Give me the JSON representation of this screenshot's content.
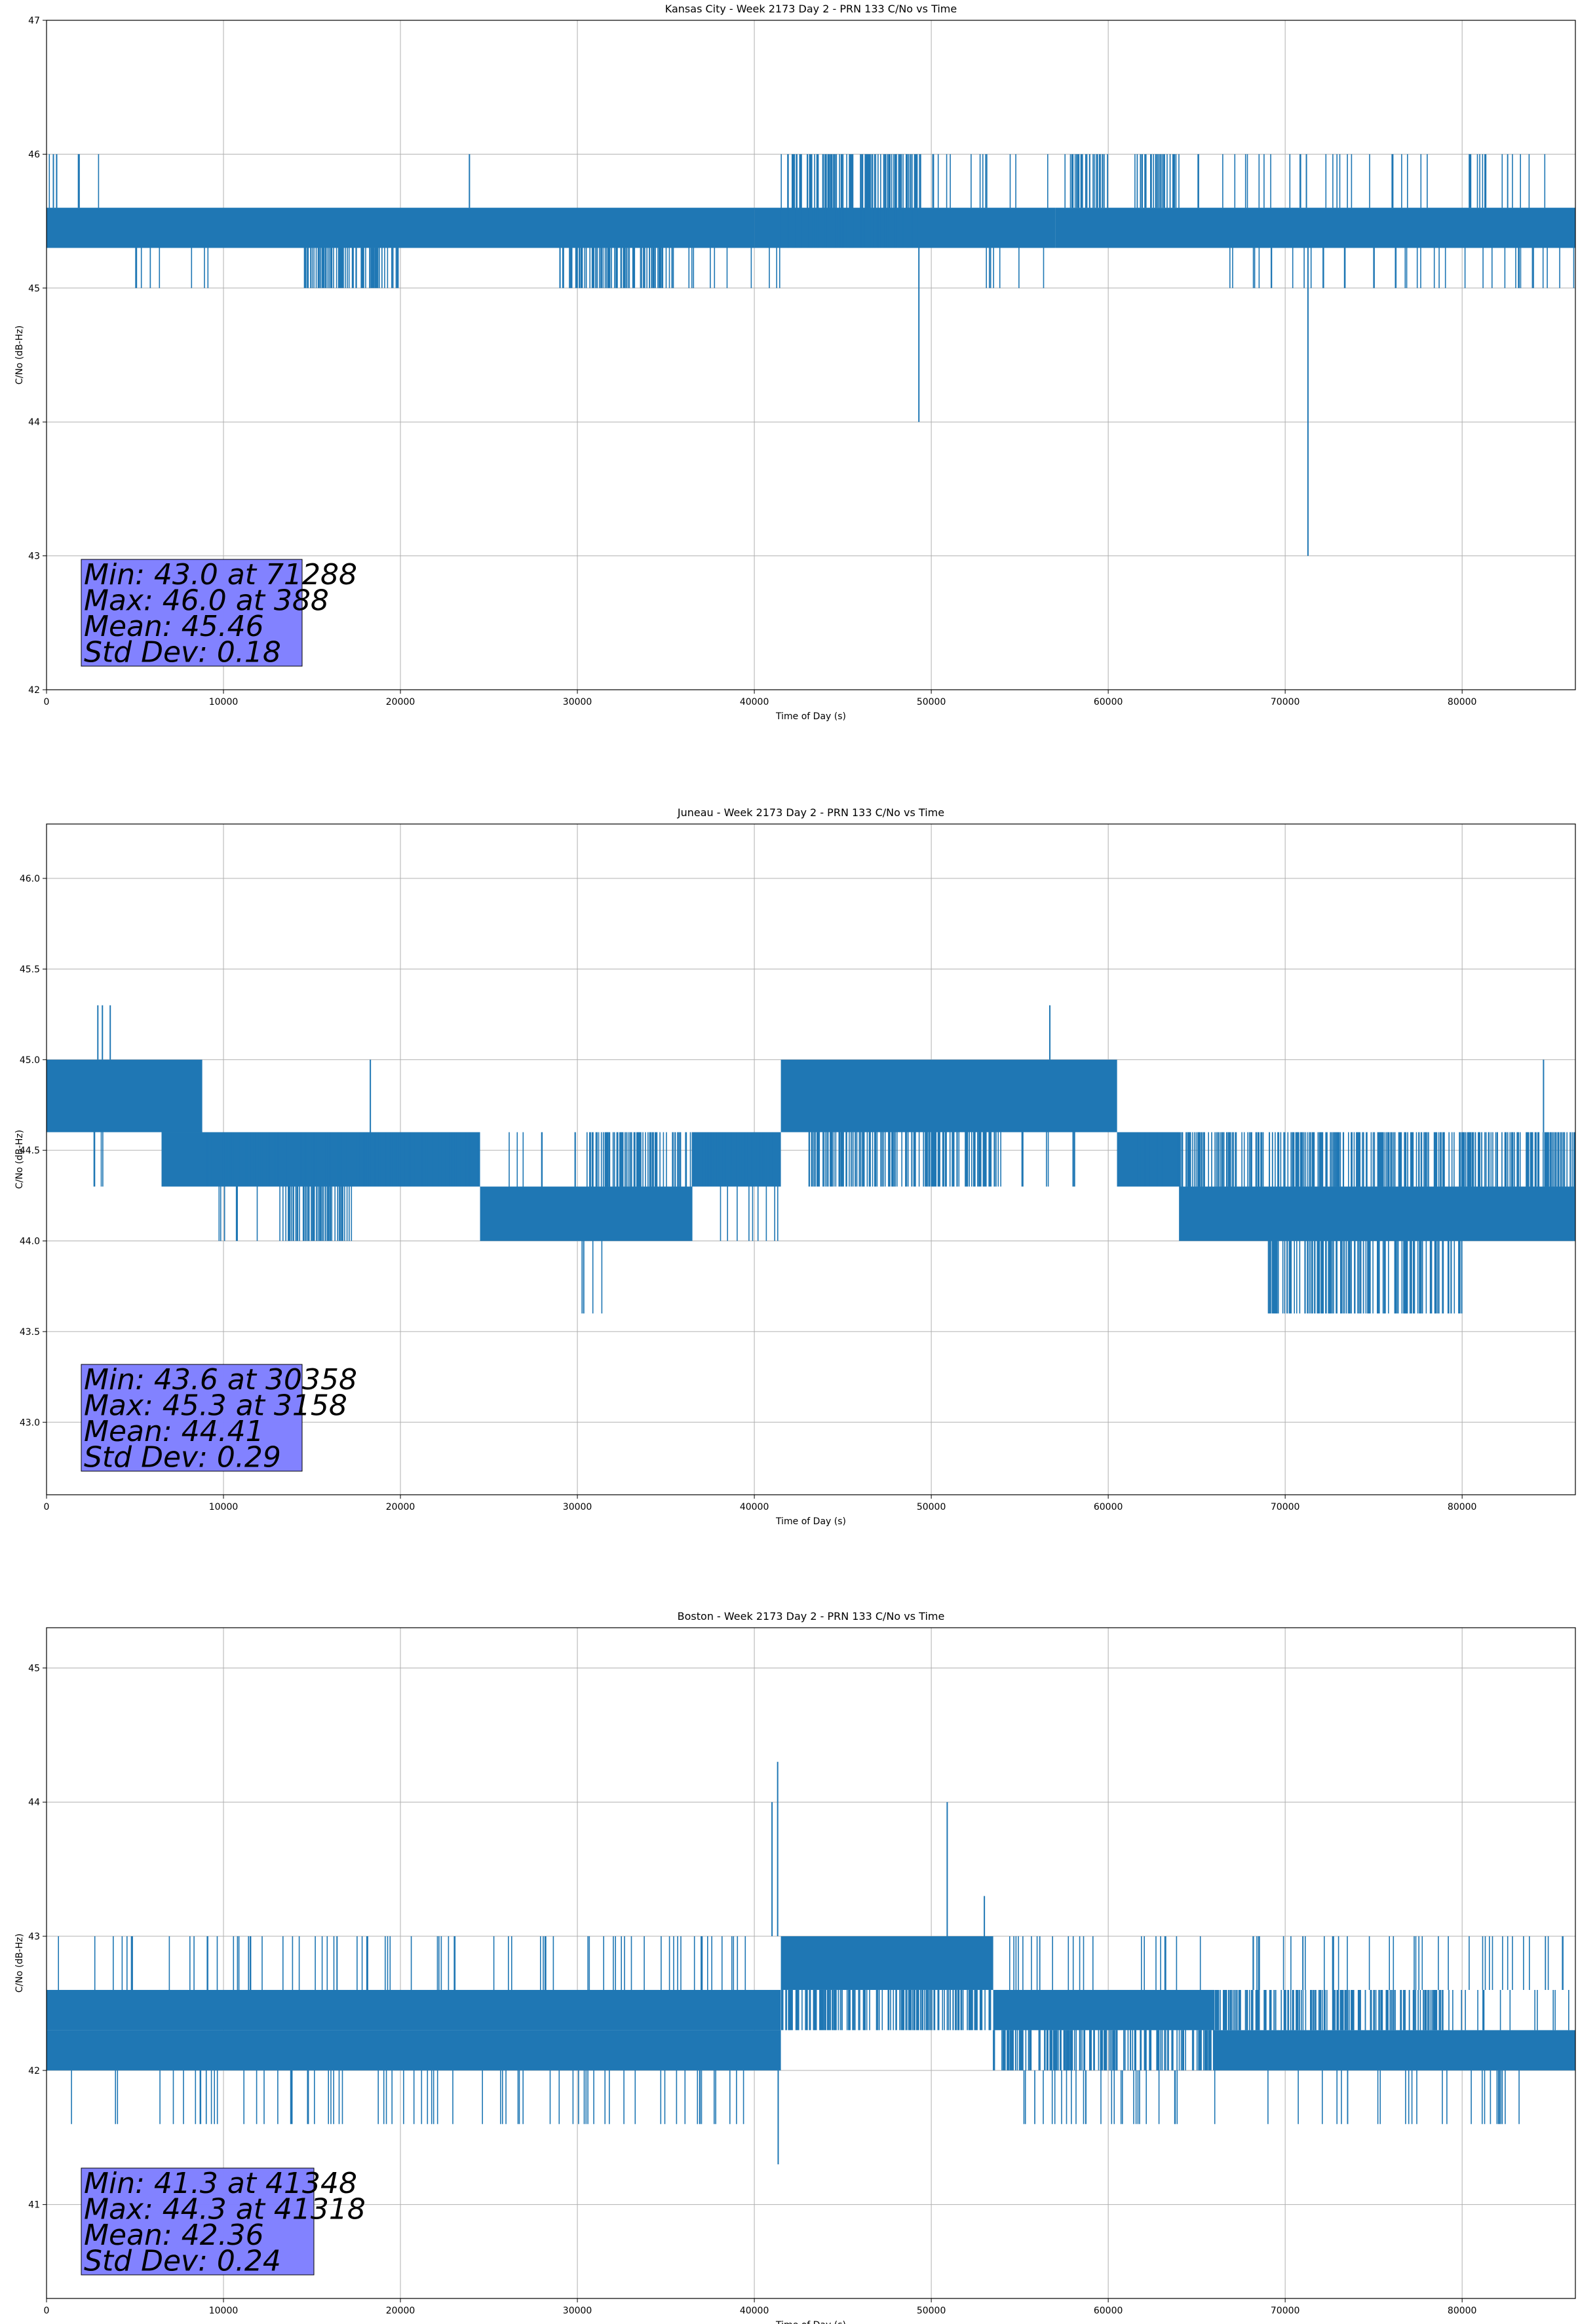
{
  "figure": {
    "colors": {
      "series": "#1f77b4",
      "grid": "#b0b0b0",
      "stats_box": "#8080ff",
      "axes": "#000000"
    }
  },
  "chart_data": [
    {
      "type": "line",
      "title": "Kansas City - Week 2173 Day 2 - PRN 133 C/No vs Time",
      "xlabel": "Time of Day (s)",
      "ylabel": "C/No (dB-Hz)",
      "xlim": [
        0,
        86400
      ],
      "ylim": [
        42,
        47
      ],
      "xticks": [
        0,
        10000,
        20000,
        30000,
        40000,
        50000,
        60000,
        70000,
        80000
      ],
      "xtick_labels": [
        "0",
        "10000",
        "20000",
        "30000",
        "40000",
        "50000",
        "60000",
        "70000",
        "80000"
      ],
      "yticks": [
        42,
        43,
        44,
        45,
        46,
        47
      ],
      "ytick_labels": [
        "42",
        "43",
        "44",
        "45",
        "46",
        "47"
      ],
      "grid": true,
      "levels": [
        45.0,
        45.3,
        45.6,
        46.0
      ],
      "band_segments": [
        {
          "x": [
            0,
            40000
          ],
          "low": 45.3,
          "high": 45.6
        },
        {
          "x": [
            40000,
            57000
          ],
          "low": 45.3,
          "high": 45.6
        },
        {
          "x": [
            57000,
            86400
          ],
          "low": 45.3,
          "high": 45.6
        }
      ],
      "dense_regions": [
        {
          "x": [
            41500,
            49500
          ],
          "low": 45.3,
          "high": 46.0
        },
        {
          "x": [
            57500,
            60000
          ],
          "low": 45.6,
          "high": 46.0
        },
        {
          "x": [
            61500,
            64000
          ],
          "low": 45.6,
          "high": 46.0
        },
        {
          "x": [
            14500,
            20000
          ],
          "low": 45.0,
          "high": 45.3
        },
        {
          "x": [
            29000,
            35500
          ],
          "low": 45.0,
          "high": 45.3
        }
      ],
      "sparse_regions": [
        {
          "x": [
            0,
            3000
          ],
          "low": 45.6,
          "high": 46.0
        },
        {
          "x": [
            5000,
            9500
          ],
          "low": 45.0,
          "high": 45.3
        },
        {
          "x": [
            36000,
            41500
          ],
          "low": 45.0,
          "high": 45.3
        },
        {
          "x": [
            50000,
            57000
          ],
          "low": 45.6,
          "high": 46.0
        },
        {
          "x": [
            53000,
            56500
          ],
          "low": 45.0,
          "high": 45.3
        },
        {
          "x": [
            65000,
            86400
          ],
          "low": 45.6,
          "high": 46.0
        },
        {
          "x": [
            66000,
            86400
          ],
          "low": 45.0,
          "high": 45.3
        }
      ],
      "spikes": [
        {
          "x": 388,
          "y": 46.0
        },
        {
          "x": 23900,
          "y": 46.0
        },
        {
          "x": 49300,
          "y": 44.0
        },
        {
          "x": 71288,
          "y": 43.0
        },
        {
          "x": 71200,
          "y": 46.0
        }
      ],
      "min": {
        "value": 43.0,
        "time": 71288
      },
      "max": {
        "value": 46.0,
        "time": 388
      },
      "mean": 45.46,
      "std_dev": 0.18,
      "stats_lines": [
        "Min: 43.0 at 71288",
        "Max: 46.0 at 388",
        "Mean: 45.46",
        "Std Dev: 0.18"
      ]
    },
    {
      "type": "line",
      "title": "Juneau - Week 2173 Day 2 - PRN 133 C/No vs Time",
      "xlabel": "Time of Day (s)",
      "ylabel": "C/No (dB-Hz)",
      "xlim": [
        0,
        86400
      ],
      "ylim": [
        42.6,
        46.3
      ],
      "xticks": [
        0,
        10000,
        20000,
        30000,
        40000,
        50000,
        60000,
        70000,
        80000
      ],
      "xtick_labels": [
        "0",
        "10000",
        "20000",
        "30000",
        "40000",
        "50000",
        "60000",
        "70000",
        "80000"
      ],
      "yticks": [
        43.0,
        43.5,
        44.0,
        44.5,
        45.0,
        45.5,
        46.0
      ],
      "ytick_labels": [
        "43.0",
        "43.5",
        "44.0",
        "44.5",
        "45.0",
        "45.5",
        "46.0"
      ],
      "grid": true,
      "levels": [
        43.6,
        44.0,
        44.3,
        44.6,
        45.0,
        45.3
      ],
      "band_segments": [
        {
          "x": [
            0,
            8800
          ],
          "low": 44.6,
          "high": 45.0
        },
        {
          "x": [
            6500,
            24500
          ],
          "low": 44.3,
          "high": 44.6
        },
        {
          "x": [
            24500,
            36500
          ],
          "low": 44.0,
          "high": 44.3
        },
        {
          "x": [
            36500,
            41500
          ],
          "low": 44.3,
          "high": 44.6
        },
        {
          "x": [
            41500,
            60500
          ],
          "low": 44.6,
          "high": 45.0
        },
        {
          "x": [
            60500,
            64000
          ],
          "low": 44.3,
          "high": 44.6
        },
        {
          "x": [
            64000,
            86400
          ],
          "low": 44.0,
          "high": 44.3
        }
      ],
      "dense_regions": [
        {
          "x": [
            9000,
            24500
          ],
          "low": 44.3,
          "high": 44.6
        },
        {
          "x": [
            13500,
            17000
          ],
          "low": 44.0,
          "high": 44.3
        },
        {
          "x": [
            30500,
            41000
          ],
          "low": 44.3,
          "high": 44.6
        },
        {
          "x": [
            43000,
            54000
          ],
          "low": 44.3,
          "high": 44.6
        },
        {
          "x": [
            64000,
            86400
          ],
          "low": 44.3,
          "high": 44.6
        },
        {
          "x": [
            69000,
            80000
          ],
          "low": 43.6,
          "high": 44.0
        }
      ],
      "sparse_regions": [
        {
          "x": [
            1500,
            3500
          ],
          "low": 44.3,
          "high": 44.6
        },
        {
          "x": [
            9500,
            18000
          ],
          "low": 44.0,
          "high": 44.3
        },
        {
          "x": [
            26000,
            30000
          ],
          "low": 44.3,
          "high": 44.6
        },
        {
          "x": [
            55000,
            64000
          ],
          "low": 44.3,
          "high": 44.6
        },
        {
          "x": [
            36500,
            41500
          ],
          "low": 44.0,
          "high": 44.3
        },
        {
          "x": [
            30200,
            31700
          ],
          "low": 43.6,
          "high": 44.0
        }
      ],
      "spikes": [
        {
          "x": 3158,
          "y": 45.3
        },
        {
          "x": 2900,
          "y": 45.3
        },
        {
          "x": 3600,
          "y": 45.3
        },
        {
          "x": 18300,
          "y": 45.0
        },
        {
          "x": 30358,
          "y": 43.6
        },
        {
          "x": 56700,
          "y": 45.3
        },
        {
          "x": 84600,
          "y": 45.0
        }
      ],
      "min": {
        "value": 43.6,
        "time": 30358
      },
      "max": {
        "value": 45.3,
        "time": 3158
      },
      "mean": 44.41,
      "std_dev": 0.29,
      "stats_lines": [
        "Min: 43.6 at 30358",
        "Max: 45.3 at 3158",
        "Mean: 44.41",
        "Std Dev: 0.29"
      ]
    },
    {
      "type": "line",
      "title": "Boston - Week 2173 Day 2 - PRN 133 C/No vs Time",
      "xlabel": "Time of Day (s)",
      "ylabel": "C/No (dB-Hz)",
      "xlim": [
        0,
        86400
      ],
      "ylim": [
        40.3,
        45.3
      ],
      "xticks": [
        0,
        10000,
        20000,
        30000,
        40000,
        50000,
        60000,
        70000,
        80000
      ],
      "xtick_labels": [
        "0",
        "10000",
        "20000",
        "30000",
        "40000",
        "50000",
        "60000",
        "70000",
        "80000"
      ],
      "yticks": [
        41,
        42,
        43,
        44,
        45
      ],
      "ytick_labels": [
        "41",
        "42",
        "43",
        "44",
        "45"
      ],
      "grid": true,
      "levels": [
        41.6,
        42.0,
        42.3,
        42.6,
        43.0
      ],
      "band_segments": [
        {
          "x": [
            0,
            41500
          ],
          "low": 42.3,
          "high": 42.6
        },
        {
          "x": [
            0,
            41500
          ],
          "low": 42.0,
          "high": 42.3
        },
        {
          "x": [
            41500,
            53500
          ],
          "low": 42.6,
          "high": 43.0
        },
        {
          "x": [
            53500,
            66000
          ],
          "low": 42.3,
          "high": 42.6
        },
        {
          "x": [
            66000,
            86400
          ],
          "low": 42.0,
          "high": 42.3
        }
      ],
      "dense_regions": [
        {
          "x": [
            41500,
            53500
          ],
          "low": 42.3,
          "high": 42.6
        },
        {
          "x": [
            53500,
            66000
          ],
          "low": 42.0,
          "high": 42.3
        },
        {
          "x": [
            66000,
            79000
          ],
          "low": 42.3,
          "high": 42.6
        }
      ],
      "sparse_regions": [
        {
          "x": [
            500,
            40000
          ],
          "low": 42.6,
          "high": 43.0
        },
        {
          "x": [
            500,
            40000
          ],
          "low": 41.6,
          "high": 42.0
        },
        {
          "x": [
            54000,
            86000
          ],
          "low": 42.6,
          "high": 43.0
        },
        {
          "x": [
            55000,
            84000
          ],
          "low": 41.6,
          "high": 42.0
        },
        {
          "x": [
            79000,
            86400
          ],
          "low": 42.3,
          "high": 42.6
        }
      ],
      "spikes": [
        {
          "x": 41318,
          "y": 44.3
        },
        {
          "x": 41348,
          "y": 41.3
        },
        {
          "x": 41000,
          "y": 44.0
        },
        {
          "x": 50900,
          "y": 44.0
        },
        {
          "x": 53000,
          "y": 43.3
        },
        {
          "x": 71000,
          "y": 43.0
        }
      ],
      "min": {
        "value": 41.3,
        "time": 41348
      },
      "max": {
        "value": 44.3,
        "time": 41318
      },
      "mean": 42.36,
      "std_dev": 0.24,
      "stats_lines": [
        "Min: 41.3 at 41348",
        "Max: 44.3 at 41318",
        "Mean: 42.36",
        "Std Dev: 0.24"
      ]
    }
  ]
}
